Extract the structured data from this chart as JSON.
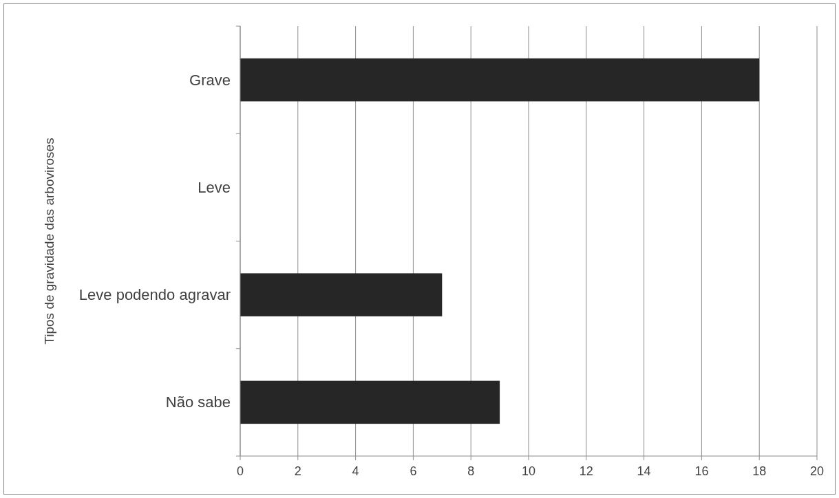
{
  "chart_data": {
    "type": "bar",
    "orientation": "horizontal",
    "ylabel": "Tipos de gravidade das arboviroses",
    "categories": [
      "Grave",
      "Leve",
      "Leve podendo agravar",
      "Não sabe"
    ],
    "values": [
      18,
      0,
      7,
      9
    ],
    "color": "#262626",
    "xlim": [
      0,
      20
    ],
    "xticks": [
      0,
      2,
      4,
      6,
      8,
      10,
      12,
      14,
      16,
      18,
      20
    ],
    "grid": "x"
  }
}
